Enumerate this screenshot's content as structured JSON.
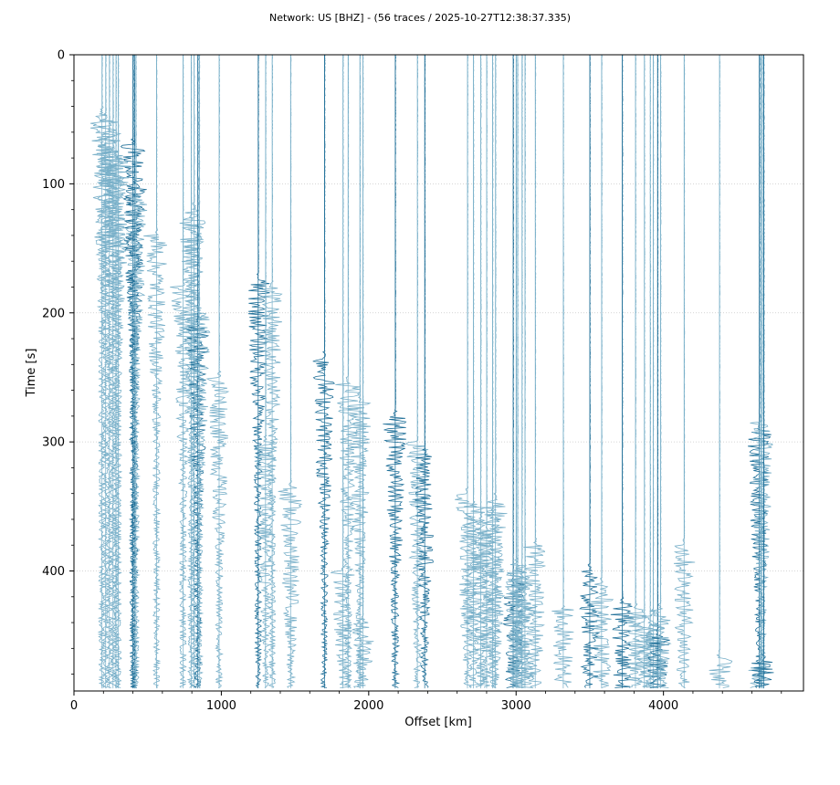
{
  "chart_data": {
    "type": "seismic-record-section",
    "title": "Network: US [BHZ] - (56 traces / 2025-10-27T12:38:37.335)",
    "xlabel": "Offset [km]",
    "ylabel": "Time [s]",
    "xlim": [
      0,
      4950
    ],
    "ylim": [
      0,
      493
    ],
    "y_inverted": true,
    "xticks": [
      "0",
      "1000",
      "2000",
      "3000",
      "4000"
    ],
    "yticks": [
      "0",
      "100",
      "200",
      "300",
      "400"
    ],
    "grid": "horizontal dotted",
    "trace_color_light": "#79b0c9",
    "trace_color_dark": "#1f6f98",
    "n_traces": 56,
    "trace_offsets_km": [
      190,
      215,
      240,
      265,
      285,
      300,
      400,
      410,
      420,
      560,
      740,
      795,
      815,
      840,
      850,
      985,
      1250,
      1300,
      1345,
      1470,
      1700,
      1825,
      1860,
      1940,
      1960,
      2180,
      2330,
      2380,
      2670,
      2710,
      2760,
      2800,
      2840,
      2860,
      2980,
      3000,
      3010,
      3040,
      3060,
      3130,
      3320,
      3500,
      3580,
      3720,
      3810,
      3870,
      3910,
      3930,
      3960,
      3980,
      4140,
      4380,
      4650,
      4660,
      4670,
      4680
    ],
    "arrival_times_s": [
      45,
      50,
      60,
      75,
      80,
      85,
      70,
      100,
      110,
      140,
      180,
      130,
      120,
      210,
      200,
      250,
      175,
      300,
      180,
      335,
      235,
      400,
      255,
      270,
      440,
      280,
      300,
      310,
      340,
      350,
      360,
      370,
      355,
      345,
      410,
      395,
      400,
      405,
      420,
      380,
      430,
      400,
      410,
      425,
      430,
      440,
      445,
      435,
      450,
      430,
      380,
      465,
      290,
      475,
      285,
      470
    ]
  }
}
